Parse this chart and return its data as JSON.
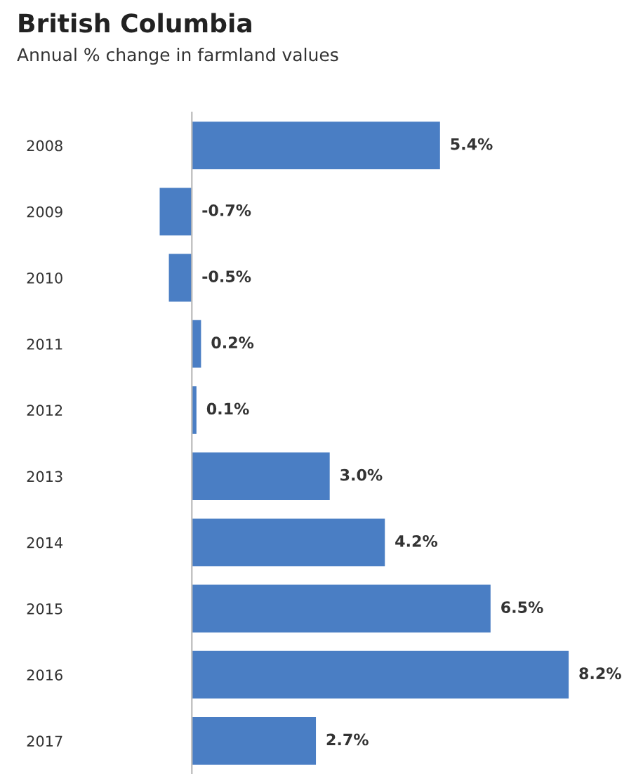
{
  "chart_data": {
    "type": "bar",
    "orientation": "horizontal",
    "title": "British Columbia",
    "subtitle": "Annual % change in farmland values",
    "categories": [
      "2008",
      "2009",
      "2010",
      "2011",
      "2012",
      "2013",
      "2014",
      "2015",
      "2016",
      "2017"
    ],
    "values": [
      5.4,
      -0.7,
      -0.5,
      0.2,
      0.1,
      3.0,
      4.2,
      6.5,
      8.2,
      2.7
    ],
    "value_labels": [
      "5.4%",
      "-0.7%",
      "-0.5%",
      "0.2%",
      "0.1%",
      "3.0%",
      "4.2%",
      "6.5%",
      "8.2%",
      "2.7%"
    ],
    "color": "#4a7ec4",
    "grid": false,
    "legend": false
  }
}
